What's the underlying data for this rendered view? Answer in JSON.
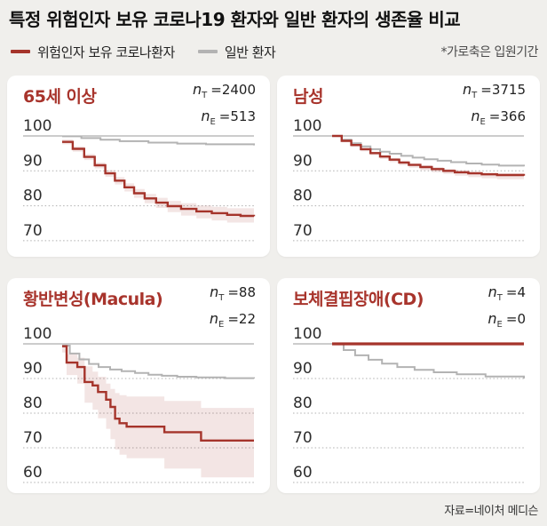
{
  "header": {
    "title": "특정 위험인자 보유 코로나19 환자와 일반 환자의 생존율 비교",
    "legend": [
      {
        "label": "위험인자 보유 코로나환자",
        "color": "#a5342b"
      },
      {
        "label": "일반 환자",
        "color": "#b3b3b3"
      }
    ],
    "note": "*가로축은 입원기간"
  },
  "footer": {
    "source": "자료=네이처 메디슨"
  },
  "colors": {
    "risk_line": "#a5342b",
    "general_line": "#b3b3b3",
    "confidence_band": "rgba(165,52,43,0.13)",
    "grid_solid": "#9a9a9a",
    "grid_dotted": "#b0b0b0",
    "panel_title": "#a8342c",
    "page_background": "#f0efec",
    "panel_background": "#ffffff"
  },
  "chart_data": [
    {
      "id": "age65",
      "type": "line",
      "title": "65세 이상",
      "n_total": {
        "sym": "n",
        "sub": "T",
        "val": "=2400"
      },
      "n_event": {
        "sym": "n",
        "sub": "E",
        "val": "=513"
      },
      "yticks": [
        100,
        90,
        80,
        70
      ],
      "ylim": [
        65,
        102
      ],
      "series": {
        "risk": {
          "x": [
            0,
            0.055,
            0.115,
            0.17,
            0.225,
            0.275,
            0.325,
            0.375,
            0.43,
            0.49,
            0.55,
            0.62,
            0.7,
            0.78,
            0.86,
            0.93,
            1
          ],
          "y": [
            98.3,
            96.3,
            94.0,
            91.6,
            89.3,
            87.2,
            85.3,
            83.6,
            82.1,
            80.9,
            79.9,
            79.1,
            78.4,
            77.9,
            77.4,
            77.1,
            77.0
          ]
        },
        "general": {
          "x": [
            0,
            0.1,
            0.2,
            0.3,
            0.45,
            0.6,
            0.75,
            1
          ],
          "y": [
            99.9,
            99.4,
            98.9,
            98.5,
            98.1,
            97.8,
            97.6,
            97.3
          ]
        },
        "band": {
          "x": [
            0,
            0.055,
            0.115,
            0.17,
            0.225,
            0.275,
            0.325,
            0.375,
            0.43,
            0.49,
            0.55,
            0.62,
            0.7,
            0.78,
            0.86,
            1
          ],
          "upper": [
            99.0,
            97.0,
            94.8,
            92.4,
            90.2,
            88.2,
            86.4,
            84.8,
            83.4,
            82.3,
            81.4,
            80.7,
            80.1,
            79.7,
            79.3,
            79.0
          ],
          "lower": [
            97.6,
            95.5,
            93.1,
            90.7,
            88.3,
            86.1,
            84.1,
            82.3,
            80.7,
            79.4,
            78.2,
            77.2,
            76.4,
            75.8,
            75.2,
            74.8
          ]
        }
      }
    },
    {
      "id": "male",
      "type": "line",
      "title": "남성",
      "n_total": {
        "sym": "n",
        "sub": "T",
        "val": "=3715"
      },
      "n_event": {
        "sym": "n",
        "sub": "E",
        "val": "=366"
      },
      "yticks": [
        100,
        90,
        80,
        70
      ],
      "ylim": [
        65,
        102
      ],
      "series": {
        "risk": {
          "x": [
            0,
            0.05,
            0.1,
            0.15,
            0.2,
            0.25,
            0.3,
            0.35,
            0.4,
            0.46,
            0.52,
            0.58,
            0.64,
            0.71,
            0.78,
            0.86,
            1
          ],
          "y": [
            100,
            98.6,
            97.4,
            96.2,
            95.1,
            94.1,
            93.2,
            92.4,
            91.7,
            91.1,
            90.5,
            90.0,
            89.6,
            89.3,
            89.0,
            88.8,
            88.6
          ]
        },
        "general": {
          "x": [
            0,
            0.05,
            0.1,
            0.15,
            0.2,
            0.25,
            0.3,
            0.36,
            0.42,
            0.48,
            0.55,
            0.62,
            0.7,
            0.78,
            0.87,
            1
          ],
          "y": [
            100,
            98.9,
            97.9,
            97.0,
            96.2,
            95.5,
            94.9,
            94.3,
            93.8,
            93.3,
            92.9,
            92.5,
            92.1,
            91.8,
            91.5,
            91.3
          ]
        },
        "band": {
          "x": [
            0,
            0.05,
            0.1,
            0.15,
            0.2,
            0.25,
            0.3,
            0.35,
            0.4,
            0.46,
            0.52,
            0.58,
            0.64,
            0.71,
            0.78,
            0.86,
            1
          ],
          "upper": [
            100,
            99.0,
            97.8,
            96.6,
            95.5,
            94.5,
            93.7,
            92.9,
            92.2,
            91.6,
            91.1,
            90.6,
            90.2,
            89.9,
            89.6,
            89.4,
            89.2
          ],
          "lower": [
            100,
            98.2,
            96.9,
            95.6,
            94.5,
            93.4,
            92.5,
            91.6,
            90.9,
            90.2,
            89.6,
            89.1,
            88.6,
            88.2,
            87.9,
            87.6,
            87.4
          ]
        }
      }
    },
    {
      "id": "macula",
      "type": "line",
      "title": "황반변성(Macula)",
      "n_total": {
        "sym": "n",
        "sub": "T",
        "val": "=88"
      },
      "n_event": {
        "sym": "n",
        "sub": "E",
        "val": "=22"
      },
      "yticks": [
        100,
        90,
        80,
        70,
        60
      ],
      "ylim": [
        57,
        102
      ],
      "series": {
        "risk": {
          "x": [
            0,
            0.023,
            0.079,
            0.117,
            0.159,
            0.187,
            0.229,
            0.252,
            0.276,
            0.299,
            0.336,
            0.533,
            0.724,
            1
          ],
          "y": [
            99.3,
            94.6,
            93.3,
            89.0,
            88.0,
            86.1,
            83.9,
            81.8,
            78.4,
            77.1,
            76.1,
            74.5,
            72.1,
            72.1
          ]
        },
        "general": {
          "x": [
            0,
            0.04,
            0.09,
            0.14,
            0.19,
            0.25,
            0.31,
            0.38,
            0.45,
            0.52,
            0.6,
            0.7,
            0.85,
            1
          ],
          "y": [
            99.5,
            97.2,
            95.5,
            94.2,
            93.3,
            92.6,
            92.1,
            91.6,
            91.1,
            90.8,
            90.5,
            90.3,
            90.1,
            90.0
          ]
        },
        "band": {
          "x": [
            0,
            0.023,
            0.079,
            0.117,
            0.159,
            0.187,
            0.229,
            0.252,
            0.276,
            0.299,
            0.336,
            0.533,
            0.724,
            1
          ],
          "upper": [
            99.6,
            97.0,
            96.0,
            93.5,
            92.0,
            90.5,
            88.5,
            87.0,
            85.8,
            85.2,
            84.8,
            83.5,
            81.5,
            81.0
          ],
          "lower": [
            97.5,
            91.0,
            88.5,
            83.0,
            81.0,
            78.5,
            75.5,
            72.5,
            69.5,
            68.0,
            67.0,
            64.0,
            61.5,
            61.0
          ]
        }
      }
    },
    {
      "id": "cd",
      "type": "line",
      "title": "보체결핍장애(CD)",
      "n_total": {
        "sym": "n",
        "sub": "T",
        "val": "=4"
      },
      "n_event": {
        "sym": "n",
        "sub": "E",
        "val": "=0"
      },
      "yticks": [
        100,
        90,
        80,
        70,
        60
      ],
      "ylim": [
        57,
        102
      ],
      "series": {
        "risk": {
          "x": [
            0,
            1
          ],
          "y": [
            100,
            100
          ]
        },
        "general": {
          "x": [
            0,
            0.06,
            0.12,
            0.19,
            0.26,
            0.34,
            0.43,
            0.53,
            0.65,
            0.8,
            1
          ],
          "y": [
            100,
            98.2,
            96.7,
            95.4,
            94.3,
            93.3,
            92.5,
            91.8,
            91.2,
            90.6,
            90.0
          ]
        },
        "band": null
      }
    }
  ]
}
